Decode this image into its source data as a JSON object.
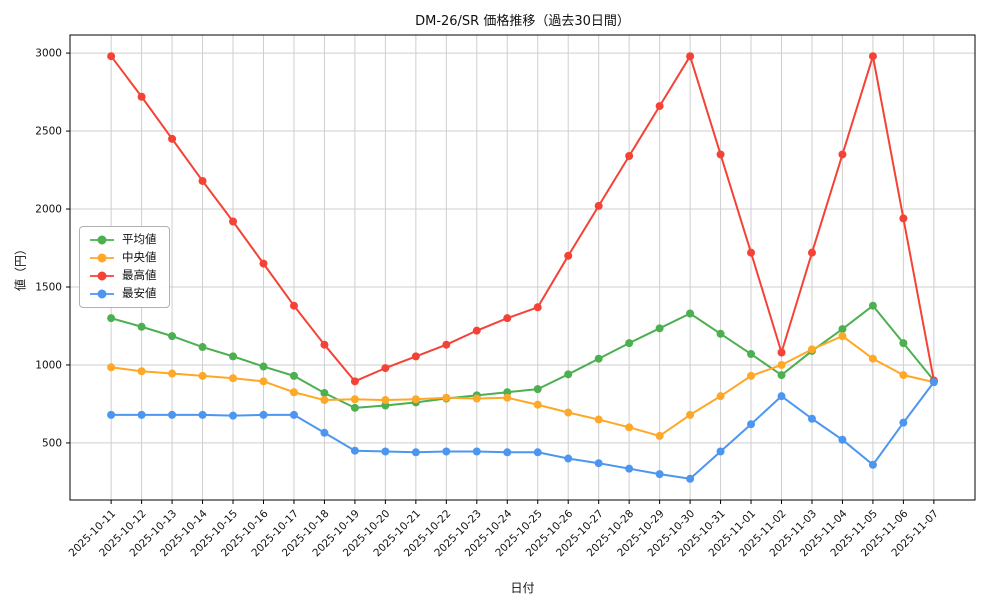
{
  "chart_data": {
    "type": "line",
    "title": "DM-26/SR 価格推移（過去30日間）",
    "xlabel": "日付",
    "ylabel": "値（円）",
    "grid": true,
    "legend_position": "left-middle",
    "yticks": [
      500,
      1000,
      1500,
      2000,
      2500,
      3000
    ],
    "ylim": [
      134,
      3116
    ],
    "x": [
      "2025-10-11",
      "2025-10-12",
      "2025-10-13",
      "2025-10-14",
      "2025-10-15",
      "2025-10-16",
      "2025-10-17",
      "2025-10-18",
      "2025-10-19",
      "2025-10-20",
      "2025-10-21",
      "2025-10-22",
      "2025-10-23",
      "2025-10-24",
      "2025-10-25",
      "2025-10-26",
      "2025-10-27",
      "2025-10-28",
      "2025-10-29",
      "2025-10-30",
      "2025-10-31",
      "2025-11-01",
      "2025-11-02",
      "2025-11-03",
      "2025-11-04",
      "2025-11-05",
      "2025-11-06",
      "2025-11-07"
    ],
    "series": [
      {
        "name": "平均値",
        "color": "#4caf50",
        "values": [
          1300,
          1245,
          1185,
          1115,
          1055,
          990,
          930,
          820,
          725,
          740,
          760,
          785,
          805,
          825,
          845,
          940,
          1040,
          1140,
          1235,
          1330,
          1200,
          1070,
          935,
          1090,
          1230,
          1380,
          1140,
          900
        ]
      },
      {
        "name": "中央値",
        "color": "#ffa726",
        "values": [
          985,
          960,
          945,
          930,
          915,
          895,
          825,
          775,
          780,
          775,
          780,
          790,
          785,
          790,
          745,
          695,
          650,
          600,
          545,
          680,
          800,
          930,
          1000,
          1100,
          1185,
          1040,
          935,
          890
        ]
      },
      {
        "name": "最高値",
        "color": "#f44336",
        "values": [
          2980,
          2720,
          2450,
          2180,
          1920,
          1650,
          1380,
          1130,
          895,
          980,
          1055,
          1130,
          1220,
          1300,
          1370,
          1700,
          2020,
          2340,
          2660,
          2980,
          2350,
          1720,
          1080,
          1720,
          2350,
          2980,
          1940,
          900
        ]
      },
      {
        "name": "最安値",
        "color": "#4d96f0",
        "values": [
          680,
          680,
          680,
          680,
          675,
          680,
          680,
          565,
          450,
          445,
          440,
          445,
          445,
          440,
          440,
          400,
          370,
          335,
          300,
          270,
          445,
          620,
          800,
          655,
          520,
          360,
          630,
          890
        ]
      }
    ]
  },
  "style": {
    "grid_color": "#cfcfcf",
    "spine_color": "#000000",
    "background": "#ffffff"
  }
}
